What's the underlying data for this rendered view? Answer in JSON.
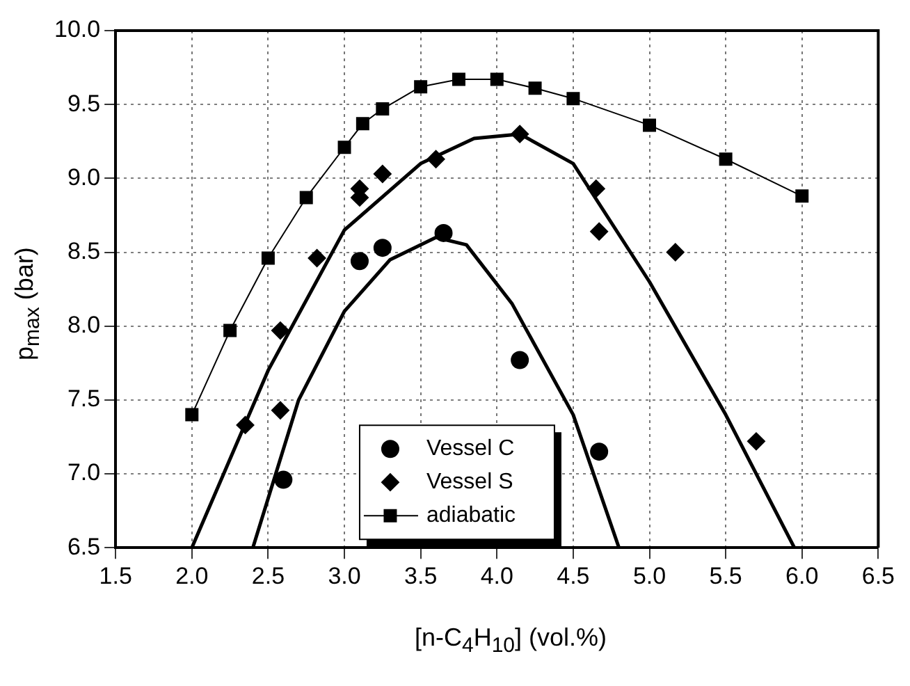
{
  "chart_data": {
    "type": "scatter",
    "xlabel": "[n-C$_{4}$H$_{10}$] (vol.%)",
    "ylabel": "p$_{max}$ (bar)",
    "xlim": [
      1.5,
      6.5
    ],
    "xticks": [
      {
        "value": 1.5,
        "label": "1.5"
      },
      {
        "value": 2,
        "label": "2.0"
      },
      {
        "value": 2.5,
        "label": "2.5"
      },
      {
        "value": 3,
        "label": "3.0"
      },
      {
        "value": 3.5,
        "label": "3.5"
      },
      {
        "value": 4,
        "label": "4.0"
      },
      {
        "value": 4.5,
        "label": "4.5"
      },
      {
        "value": 5,
        "label": "5.0"
      },
      {
        "value": 5.5,
        "label": "5.5"
      },
      {
        "value": 6,
        "label": "6.0"
      },
      {
        "value": 6.5,
        "label": "6.5"
      }
    ],
    "ylim": [
      6.5,
      10
    ],
    "yticks": [
      {
        "value": 6.5,
        "label": "6.5"
      },
      {
        "value": 7,
        "label": "7.0"
      },
      {
        "value": 7.5,
        "label": "7.5"
      },
      {
        "value": 8,
        "label": "8.0"
      },
      {
        "value": 8.5,
        "label": "8.5"
      },
      {
        "value": 9,
        "label": "9.0"
      },
      {
        "value": 9.5,
        "label": "9.5"
      },
      {
        "value": 10,
        "label": "10.0"
      }
    ],
    "grid": true,
    "legend": "bottom",
    "series": [
      {
        "name": "Vessel C",
        "marker": "circle",
        "color": "#000000",
        "x": [
          2.6,
          3.1,
          3.25,
          3.65,
          4.15,
          4.67
        ],
        "values": [
          6.96,
          8.44,
          8.53,
          8.63,
          7.77,
          7.15
        ]
      },
      {
        "name": "Vessel S",
        "marker": "diamond",
        "color": "#000000",
        "x": [
          2.35,
          2.58,
          2.58,
          2.82,
          3.1,
          3.1,
          3.25,
          3.6,
          4.15,
          4.65,
          4.67,
          5.17,
          5.7
        ],
        "values": [
          7.33,
          7.97,
          7.43,
          8.46,
          8.93,
          8.87,
          9.03,
          9.13,
          9.3,
          8.93,
          8.64,
          8.5,
          7.22
        ]
      },
      {
        "name": "adiabatic",
        "type": "line",
        "marker": "square",
        "color": "#000000",
        "x": [
          2.0,
          2.25,
          2.5,
          2.75,
          3.0,
          3.12,
          3.25,
          3.5,
          3.75,
          4.0,
          4.25,
          4.5,
          5.0,
          5.5,
          6.0
        ],
        "values": [
          7.4,
          7.97,
          8.46,
          8.87,
          9.21,
          9.37,
          9.47,
          9.62,
          9.67,
          9.67,
          9.61,
          9.54,
          9.36,
          9.13,
          8.88
        ]
      },
      {
        "type": "line",
        "marker": "none",
        "color": "#000000",
        "x": [
          2.0,
          2.5,
          3.0,
          3.5,
          3.85,
          4.15,
          4.5,
          5.0,
          5.5,
          5.95
        ],
        "values": [
          6.5,
          7.7,
          8.65,
          9.1,
          9.27,
          9.3,
          9.1,
          8.3,
          7.4,
          6.5
        ]
      },
      {
        "type": "line",
        "marker": "none",
        "color": "#000000",
        "x": [
          2.4,
          2.7,
          3.0,
          3.3,
          3.6,
          3.8,
          4.1,
          4.5,
          4.8
        ],
        "values": [
          6.5,
          7.5,
          8.1,
          8.45,
          8.6,
          8.55,
          8.15,
          7.4,
          6.5
        ]
      }
    ]
  }
}
